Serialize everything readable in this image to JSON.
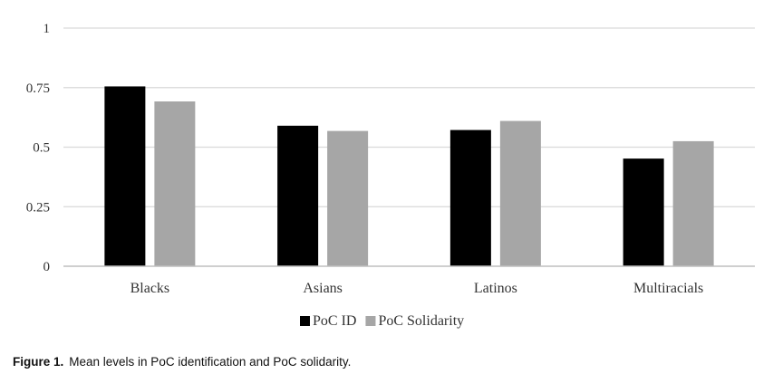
{
  "chart_data": {
    "type": "bar",
    "categories": [
      "Blacks",
      "Asians",
      "Latinos",
      "Multiracials"
    ],
    "series": [
      {
        "name": "PoC ID",
        "values": [
          0.755,
          0.59,
          0.572,
          0.452
        ],
        "color": "#000000"
      },
      {
        "name": "PoC Solidarity",
        "values": [
          0.692,
          0.568,
          0.61,
          0.525
        ],
        "color": "#a6a6a6"
      }
    ],
    "yticks": [
      "0",
      "0.25",
      "0.5",
      "0.75",
      "1"
    ],
    "ylim": [
      0,
      1
    ],
    "grid": true,
    "legend_position": "bottom-center"
  },
  "caption": {
    "label": "Figure 1.",
    "text": "Mean levels in PoC identification and PoC solidarity."
  }
}
